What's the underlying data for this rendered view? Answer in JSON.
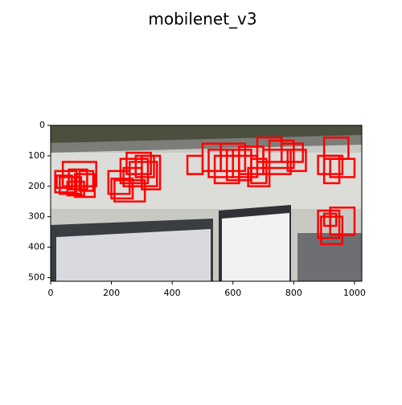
{
  "chart_data": {
    "type": "image",
    "title": "mobilenet_v3",
    "xlim": [
      0,
      1024
    ],
    "ylim": [
      512,
      0
    ],
    "xticks": [
      0,
      200,
      400,
      600,
      800,
      1000
    ],
    "yticks": [
      0,
      100,
      200,
      300,
      400,
      500
    ],
    "box_color": "#ff0000",
    "boxes": [
      [
        15,
        150,
        85,
        220
      ],
      [
        30,
        170,
        100,
        225
      ],
      [
        40,
        120,
        150,
        200
      ],
      [
        60,
        145,
        120,
        210
      ],
      [
        80,
        160,
        145,
        235
      ],
      [
        20,
        165,
        70,
        205
      ],
      [
        95,
        150,
        140,
        215
      ],
      [
        55,
        185,
        110,
        230
      ],
      [
        190,
        150,
        260,
        225
      ],
      [
        200,
        175,
        270,
        240
      ],
      [
        210,
        180,
        310,
        250
      ],
      [
        230,
        110,
        320,
        190
      ],
      [
        250,
        90,
        330,
        160
      ],
      [
        260,
        120,
        350,
        200
      ],
      [
        280,
        100,
        340,
        170
      ],
      [
        240,
        140,
        300,
        200
      ],
      [
        300,
        100,
        360,
        210
      ],
      [
        450,
        100,
        500,
        160
      ],
      [
        500,
        60,
        560,
        150
      ],
      [
        520,
        80,
        600,
        170
      ],
      [
        540,
        100,
        620,
        190
      ],
      [
        560,
        60,
        640,
        150
      ],
      [
        580,
        80,
        660,
        180
      ],
      [
        600,
        100,
        680,
        170
      ],
      [
        620,
        70,
        700,
        160
      ],
      [
        660,
        110,
        710,
        190
      ],
      [
        680,
        40,
        760,
        120
      ],
      [
        700,
        80,
        790,
        160
      ],
      [
        720,
        50,
        800,
        140
      ],
      [
        760,
        60,
        830,
        120
      ],
      [
        780,
        80,
        840,
        150
      ],
      [
        650,
        140,
        720,
        200
      ],
      [
        900,
        40,
        980,
        110
      ],
      [
        880,
        100,
        960,
        160
      ],
      [
        920,
        110,
        1000,
        170
      ],
      [
        900,
        100,
        950,
        190
      ],
      [
        880,
        280,
        950,
        370
      ],
      [
        890,
        300,
        960,
        390
      ],
      [
        920,
        270,
        1000,
        360
      ],
      [
        900,
        290,
        940,
        330
      ]
    ]
  }
}
